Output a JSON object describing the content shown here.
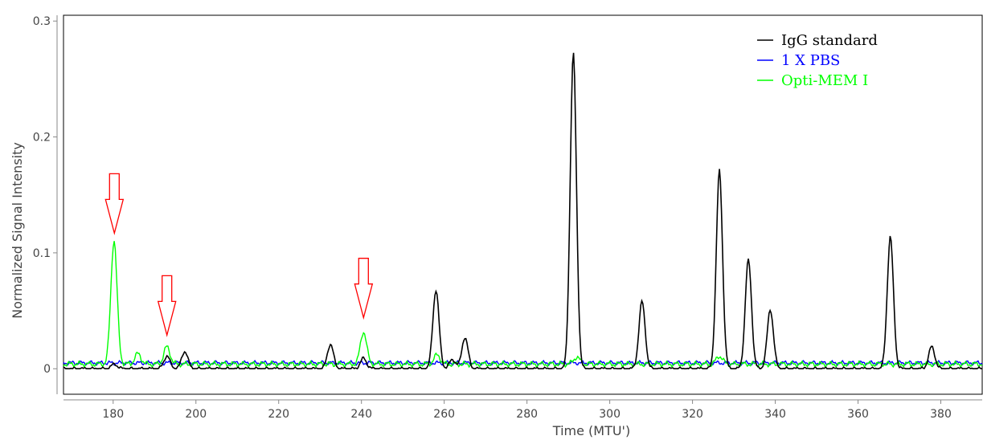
{
  "chart_data": {
    "type": "line",
    "xlabel": "Time (MTU')",
    "ylabel": "Normalized Signal Intensity",
    "xlim": [
      168,
      390
    ],
    "ylim": [
      -0.022,
      0.305
    ],
    "x_ticks": [
      "180",
      "200",
      "220",
      "240",
      "260",
      "280",
      "300",
      "320",
      "340",
      "360",
      "380"
    ],
    "y_ticks": [
      "0",
      "0.1",
      "0.2",
      "0.3"
    ],
    "grid": false,
    "legend_position": "top-right",
    "series": [
      {
        "name": "IgG standard",
        "color": "#000000",
        "baseline": 0.0,
        "noise": 0.0015,
        "peaks": [
          {
            "x": 180.3,
            "y": 0.004
          },
          {
            "x": 193.0,
            "y": 0.011
          },
          {
            "x": 197.3,
            "y": 0.015
          },
          {
            "x": 232.5,
            "y": 0.021
          },
          {
            "x": 240.5,
            "y": 0.009
          },
          {
            "x": 258.0,
            "y": 0.068
          },
          {
            "x": 262.0,
            "y": 0.008
          },
          {
            "x": 265.0,
            "y": 0.027
          },
          {
            "x": 291.2,
            "y": 0.272
          },
          {
            "x": 307.8,
            "y": 0.058
          },
          {
            "x": 326.5,
            "y": 0.171
          },
          {
            "x": 333.5,
            "y": 0.094
          },
          {
            "x": 338.8,
            "y": 0.051
          },
          {
            "x": 367.8,
            "y": 0.114
          },
          {
            "x": 377.8,
            "y": 0.019
          }
        ]
      },
      {
        "name": "1 X PBS",
        "color": "#0000ff",
        "baseline": 0.005,
        "noise": 0.002,
        "peaks": []
      },
      {
        "name": "Opti-MEM I",
        "color": "#00ff00",
        "baseline": 0.004,
        "noise": 0.0025,
        "peaks": [
          {
            "x": 180.2,
            "y": 0.111
          },
          {
            "x": 186.0,
            "y": 0.013
          },
          {
            "x": 193.0,
            "y": 0.019
          },
          {
            "x": 240.5,
            "y": 0.032
          },
          {
            "x": 258.3,
            "y": 0.012
          },
          {
            "x": 292.0,
            "y": 0.01
          },
          {
            "x": 326.5,
            "y": 0.011
          }
        ]
      }
    ],
    "annotations": [
      {
        "type": "down-arrow",
        "x": 180.3,
        "y_tip": 0.117,
        "color": "#ff0000"
      },
      {
        "type": "down-arrow",
        "x": 193.0,
        "y_tip": 0.029,
        "color": "#ff0000"
      },
      {
        "type": "down-arrow",
        "x": 240.5,
        "y_tip": 0.044,
        "color": "#ff0000"
      }
    ]
  }
}
